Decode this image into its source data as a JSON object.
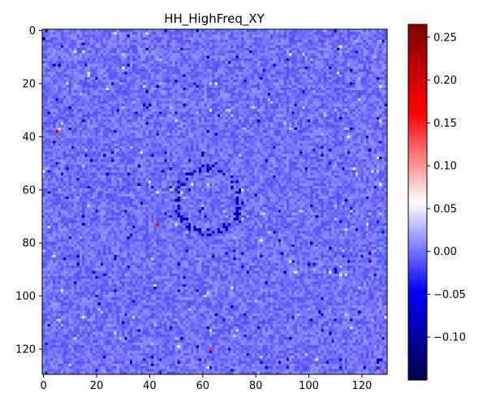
{
  "chart_data": {
    "type": "heatmap",
    "title": "HH_HighFreq_XY",
    "xlabel": "",
    "ylabel": "",
    "rows": 130,
    "cols": 130,
    "x_range": [
      0,
      129
    ],
    "y_range": [
      0,
      129
    ],
    "y_axis_inverted": true,
    "x_ticks": [
      0,
      20,
      40,
      60,
      80,
      100,
      120
    ],
    "y_ticks": [
      0,
      20,
      40,
      60,
      80,
      100,
      120
    ],
    "colormap": "seismic",
    "colorbar": {
      "vmin": -0.15,
      "vmax": 0.265,
      "ticks": [
        -0.1,
        -0.05,
        0.0,
        0.05,
        0.1,
        0.15,
        0.2,
        0.25
      ],
      "tick_labels": [
        "−0.10",
        "−0.05",
        "0.00",
        "0.05",
        "0.10",
        "0.15",
        "0.20",
        "0.25"
      ]
    },
    "background_value": 0.0,
    "grid": false,
    "legend": "none",
    "notable_values": [
      {
        "x": 1,
        "y": 0,
        "value": 0.26
      },
      {
        "x": 0,
        "y": 3,
        "value": -0.14
      },
      {
        "x": 5,
        "y": 38,
        "value": 0.18
      },
      {
        "x": 43,
        "y": 73,
        "value": 0.16
      },
      {
        "x": 63,
        "y": 120,
        "value": 0.15
      },
      {
        "x": 126,
        "y": 127,
        "value": 0.24
      },
      {
        "x": 127,
        "y": 124,
        "value": -0.12
      },
      {
        "x": 40,
        "y": 28,
        "value": -0.09
      },
      {
        "x": 81,
        "y": 34,
        "value": -0.1
      },
      {
        "x": 36,
        "y": 51,
        "value": -0.09
      },
      {
        "x": 71,
        "y": 59,
        "value": -0.12
      },
      {
        "x": 73,
        "y": 70,
        "value": -0.11
      },
      {
        "x": 108,
        "y": 114,
        "value": -0.1
      },
      {
        "x": 100,
        "y": 88,
        "value": -0.08
      },
      {
        "x": 24,
        "y": 54,
        "value": -0.08
      }
    ]
  }
}
